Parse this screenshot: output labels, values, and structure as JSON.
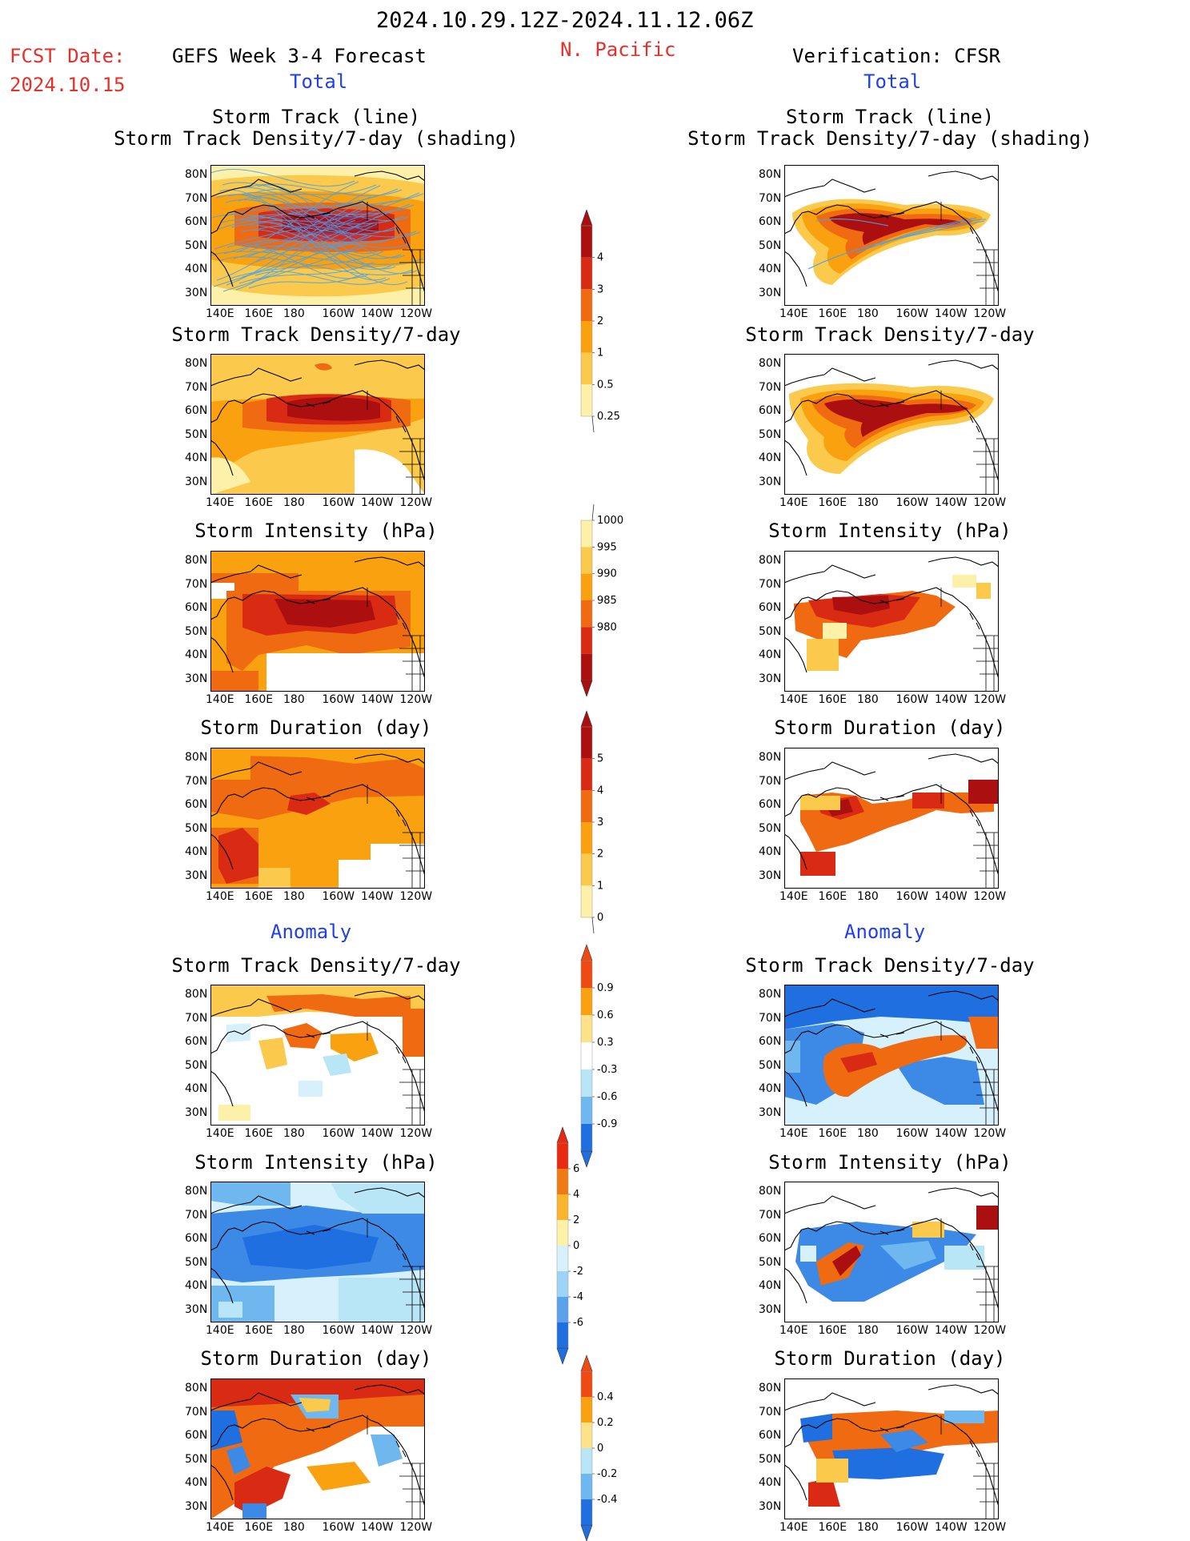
{
  "header": {
    "date_range": "2024.10.29.12Z-2024.11.12.06Z",
    "fcst_label": "FCST Date:",
    "fcst_date": "2024.10.15",
    "left_title": "GEFS Week 3-4 Forecast",
    "region": "N. Pacific",
    "right_title": "Verification: CFSR",
    "total_left": "Total",
    "total_right": "Total",
    "anomaly_left": "Anomaly",
    "anomaly_right": "Anomaly"
  },
  "axes": {
    "lat_labels": [
      "80N",
      "70N",
      "60N",
      "50N",
      "40N",
      "30N"
    ],
    "lon_labels": [
      "140E",
      "160E",
      "180",
      "160W",
      "140W",
      "120W"
    ]
  },
  "panels": {
    "track_line_title": "Storm Track (line)",
    "track_shading_title": "Storm Track Density/7-day (shading)",
    "density_title": "Storm Track Density/7-day",
    "intensity_title": "Storm Intensity (hPa)",
    "duration_title": "Storm Duration (day)"
  },
  "colorbars": {
    "density_total": {
      "ticks": [
        "4",
        "3",
        "2",
        "1",
        "0.5",
        "0.25"
      ],
      "colors": [
        "#ab0f0f",
        "#d92b14",
        "#f06a12",
        "#f9a10e",
        "#fbc94b",
        "#fdf0a8"
      ]
    },
    "intensity_total": {
      "ticks": [
        "1000",
        "995",
        "990",
        "985",
        "980"
      ],
      "colors": [
        "#fdf0a8",
        "#fbc94b",
        "#f9a10e",
        "#f06a12",
        "#d92b14",
        "#ab0f0f"
      ]
    },
    "duration_total": {
      "ticks": [
        "5",
        "4",
        "3",
        "2",
        "1",
        "0"
      ],
      "colors": [
        "#ab0f0f",
        "#d92b14",
        "#f06a12",
        "#f9a10e",
        "#fbc94b",
        "#fdf0a8"
      ]
    },
    "density_anom": {
      "ticks": [
        "0.9",
        "0.6",
        "0.3",
        "-0.3",
        "-0.6",
        "-0.9"
      ],
      "colors": [
        "#f04a14",
        "#f9a10e",
        "#fde28a",
        "#ffffff",
        "#b8e6f7",
        "#6fb8ef",
        "#1f6fe0"
      ]
    },
    "intensity_anom": {
      "ticks": [
        "6",
        "4",
        "2",
        "0",
        "-2",
        "-4",
        "-6"
      ],
      "colors": [
        "#e82a10",
        "#f07a12",
        "#f9b52e",
        "#fdf0a8",
        "#d6f1fb",
        "#9dd4f5",
        "#5aa2ec",
        "#1f6fe0"
      ]
    },
    "duration_anom": {
      "ticks": [
        "0.4",
        "0.2",
        "0",
        "-0.2",
        "-0.4"
      ],
      "colors": [
        "#f04a14",
        "#f9a10e",
        "#fde28a",
        "#b8e6f7",
        "#6fb8ef",
        "#1f6fe0"
      ]
    }
  }
}
